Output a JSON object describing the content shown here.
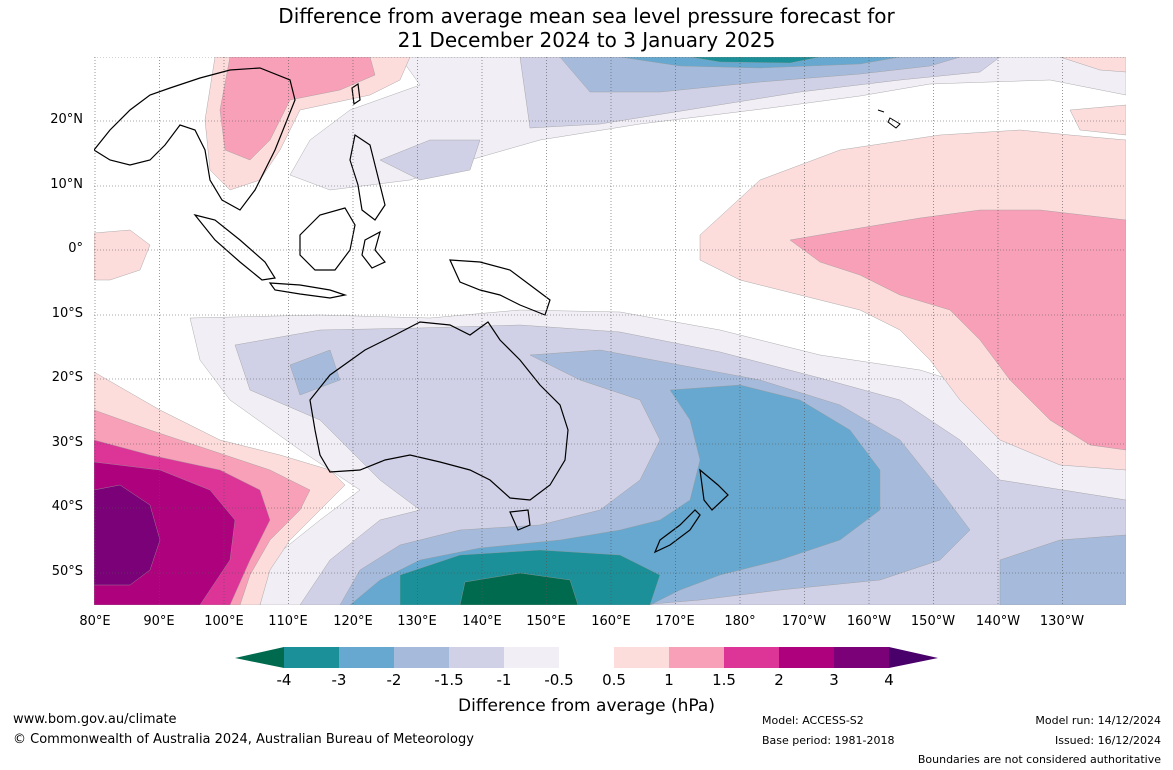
{
  "title": {
    "line1": "Difference from average mean sea level pressure forecast for",
    "line2": "21 December 2024 to 3 January 2025"
  },
  "map": {
    "lat_labels": [
      "20°N",
      "10°N",
      "0°",
      "10°S",
      "20°S",
      "30°S",
      "40°S",
      "50°S"
    ],
    "lon_labels": [
      "80°E",
      "90°E",
      "100°E",
      "110°E",
      "120°E",
      "130°E",
      "140°E",
      "150°E",
      "160°E",
      "170°E",
      "180°",
      "170°W",
      "160°W",
      "150°W",
      "140°W",
      "130°W"
    ],
    "lat_range": [
      -55,
      30
    ],
    "lon_range": [
      80,
      240
    ]
  },
  "colorbar": {
    "title": "Difference from average (hPa)",
    "labels": [
      "-4",
      "-3",
      "-2",
      "-1.5",
      "-1",
      "-0.5",
      "0.5",
      "1",
      "1.5",
      "2",
      "3",
      "4"
    ],
    "colors": {
      "lt_m4": "#006a4e",
      "m4_m3": "#1b9099",
      "m3_m2": "#66a8cf",
      "m2_m15": "#a6bbdc",
      "m15_m1": "#d0d1e6",
      "m1_m05": "#f1eef6",
      "neutral": "#ffffff",
      "p05_p1": "#fddcdc",
      "p1_p15": "#f8a0b8",
      "p15_p2": "#dd3497",
      "p2_p3": "#ae017e",
      "p3_p4": "#7a0177",
      "gt_p4": "#49006a"
    }
  },
  "footer": {
    "website": "www.bom.gov.au/climate",
    "copyright": "© Commonwealth of Australia 2024, Australian Bureau of Meteorology",
    "model": "Model: ACCESS-S2",
    "base_period": "Base period: 1981-2018",
    "model_run": "Model run: 14/12/2024",
    "issued": "Issued: 16/12/2024",
    "disclaimer": "Boundaries are not considered authoritative"
  }
}
